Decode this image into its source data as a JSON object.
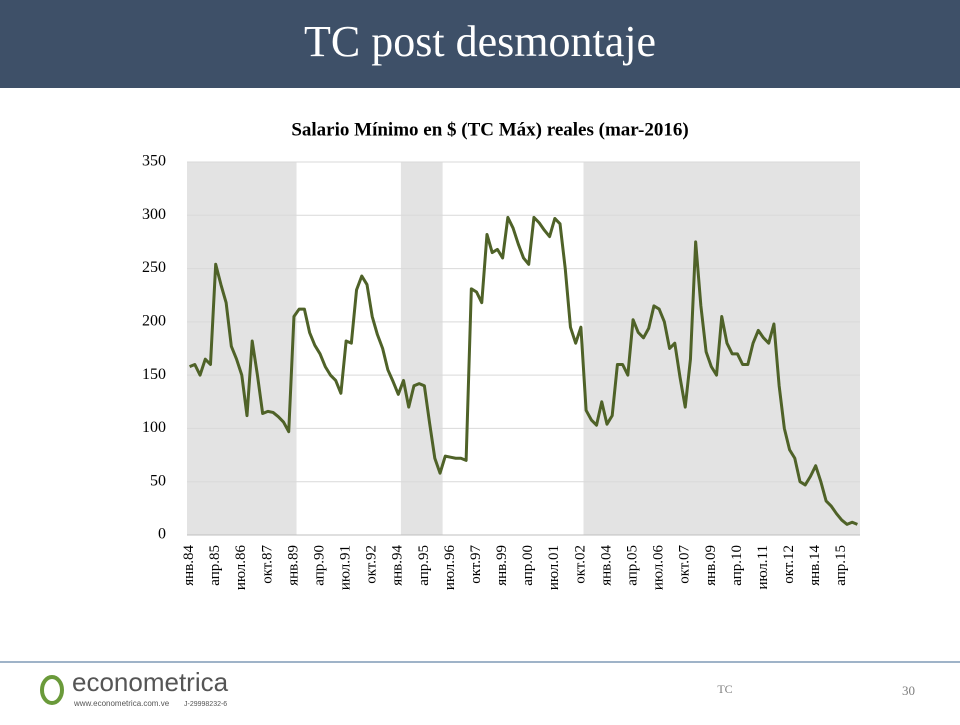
{
  "header": {
    "title": "TC post desmontaje"
  },
  "chart_data": {
    "type": "line",
    "title": "Salario Mínimo en $ (TC Máx) reales (mar-2016)",
    "categories": [
      "янв.84",
      null,
      null,
      null,
      null,
      "апр.85",
      null,
      null,
      null,
      null,
      "июл.86",
      null,
      null,
      null,
      null,
      "окт.87",
      null,
      null,
      null,
      null,
      "янв.89",
      null,
      null,
      null,
      null,
      "апр.90",
      null,
      null,
      null,
      null,
      "июл.91",
      null,
      null,
      null,
      null,
      "окт.92",
      null,
      null,
      null,
      null,
      "янв.94",
      null,
      null,
      null,
      null,
      "апр.95",
      null,
      null,
      null,
      null,
      "июл.96",
      null,
      null,
      null,
      null,
      "окт.97",
      null,
      null,
      null,
      null,
      "янв.99",
      null,
      null,
      null,
      null,
      "апр.00",
      null,
      null,
      null,
      null,
      "июл.01",
      null,
      null,
      null,
      null,
      "окт.02",
      null,
      null,
      null,
      null,
      "янв.04",
      null,
      null,
      null,
      null,
      "апр.05",
      null,
      null,
      null,
      null,
      "июл.06",
      null,
      null,
      null,
      null,
      "окт.07",
      null,
      null,
      null,
      null,
      "янв.09",
      null,
      null,
      null,
      null,
      "апр.10",
      null,
      null,
      null,
      null,
      "июл.11",
      null,
      null,
      null,
      null,
      "окт.12",
      null,
      null,
      null,
      null,
      "янв.14",
      null,
      null,
      null,
      null,
      "апр.15",
      null,
      null,
      null
    ],
    "values": [
      158,
      160,
      150,
      165,
      160,
      254,
      235,
      218,
      177,
      165,
      150,
      112,
      182,
      150,
      114,
      116,
      115,
      111,
      106,
      97,
      205,
      212,
      212,
      190,
      178,
      170,
      158,
      150,
      145,
      133,
      182,
      180,
      230,
      243,
      235,
      205,
      188,
      175,
      155,
      144,
      132,
      145,
      120,
      140,
      142,
      140,
      105,
      72,
      58,
      74,
      73,
      72,
      72,
      70,
      231,
      228,
      218,
      282,
      265,
      268,
      260,
      298,
      288,
      273,
      260,
      254,
      298,
      293,
      286,
      280,
      297,
      292,
      250,
      195,
      180,
      195,
      117,
      108,
      103,
      125,
      104,
      112,
      160,
      160,
      150,
      202,
      190,
      185,
      194,
      215,
      212,
      200,
      175,
      180,
      148,
      120,
      165,
      275,
      215,
      172,
      158,
      150,
      205,
      180,
      170,
      170,
      160,
      160,
      180,
      192,
      185,
      180,
      198,
      140,
      100,
      80,
      72,
      50,
      47,
      55,
      65,
      50,
      32,
      27,
      20,
      14,
      10,
      12,
      10
    ],
    "color": "#4f6228",
    "ylim": [
      0,
      350
    ],
    "yticks": [
      0,
      50,
      100,
      150,
      200,
      250,
      300,
      350
    ],
    "grid": true,
    "shaded_periods": [
      [
        0,
        20
      ],
      [
        41,
        48
      ],
      [
        76,
        128
      ]
    ],
    "shade_color": "#e3e3e3"
  },
  "footer": {
    "logo": "econometrica",
    "website": "www.econometrica.com.ve",
    "rif": "J-29998232-6",
    "section": "TC",
    "page": "30"
  }
}
